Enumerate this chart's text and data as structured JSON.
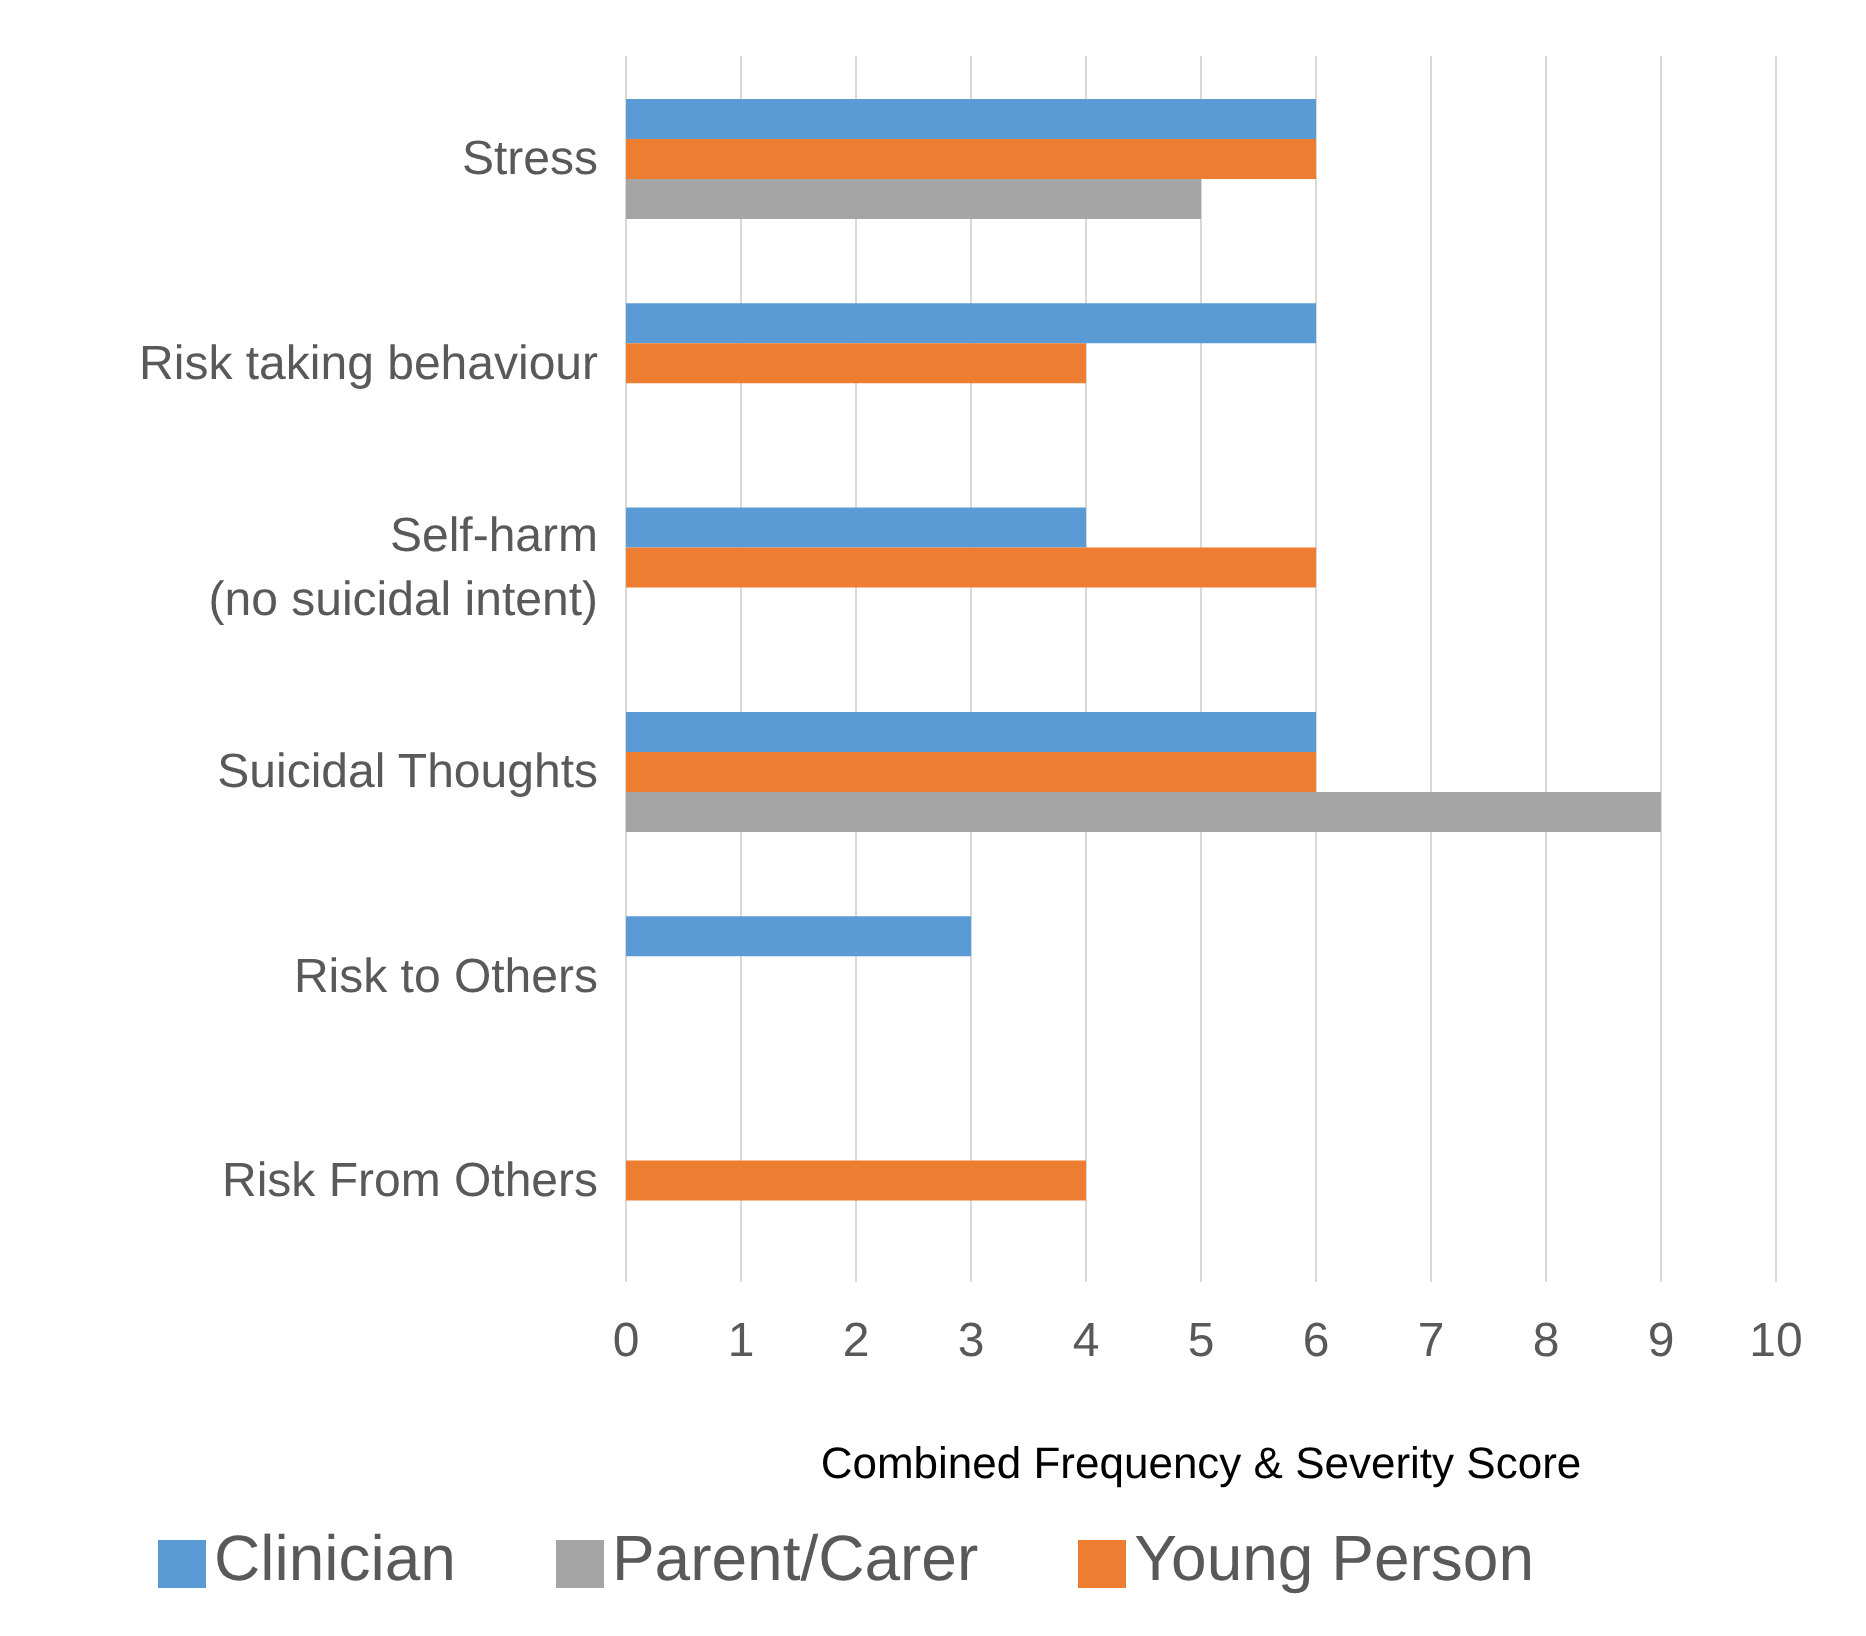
{
  "chart_data": {
    "type": "bar",
    "orientation": "horizontal",
    "xlabel": "Combined Frequency & Severity Score",
    "categories": [
      "Stress",
      "Risk taking behaviour",
      "Self-harm\n(no suicidal intent)",
      "Suicidal Thoughts",
      "Risk to Others",
      "Risk From Others"
    ],
    "series": [
      {
        "name": "Clinician",
        "color": "#5b9bd5",
        "values": [
          6,
          6,
          4,
          6,
          3,
          null
        ]
      },
      {
        "name": "Young Person",
        "color": "#ed7d31",
        "values": [
          6,
          4,
          6,
          6,
          null,
          4
        ]
      },
      {
        "name": "Parent/Carer",
        "color": "#a5a5a5",
        "values": [
          5,
          null,
          null,
          9,
          null,
          null
        ]
      }
    ],
    "xlim": [
      0,
      10
    ],
    "xticks": [
      0,
      1,
      2,
      3,
      4,
      5,
      6,
      7,
      8,
      9,
      10
    ],
    "grid": "x",
    "legend": "bottom"
  }
}
